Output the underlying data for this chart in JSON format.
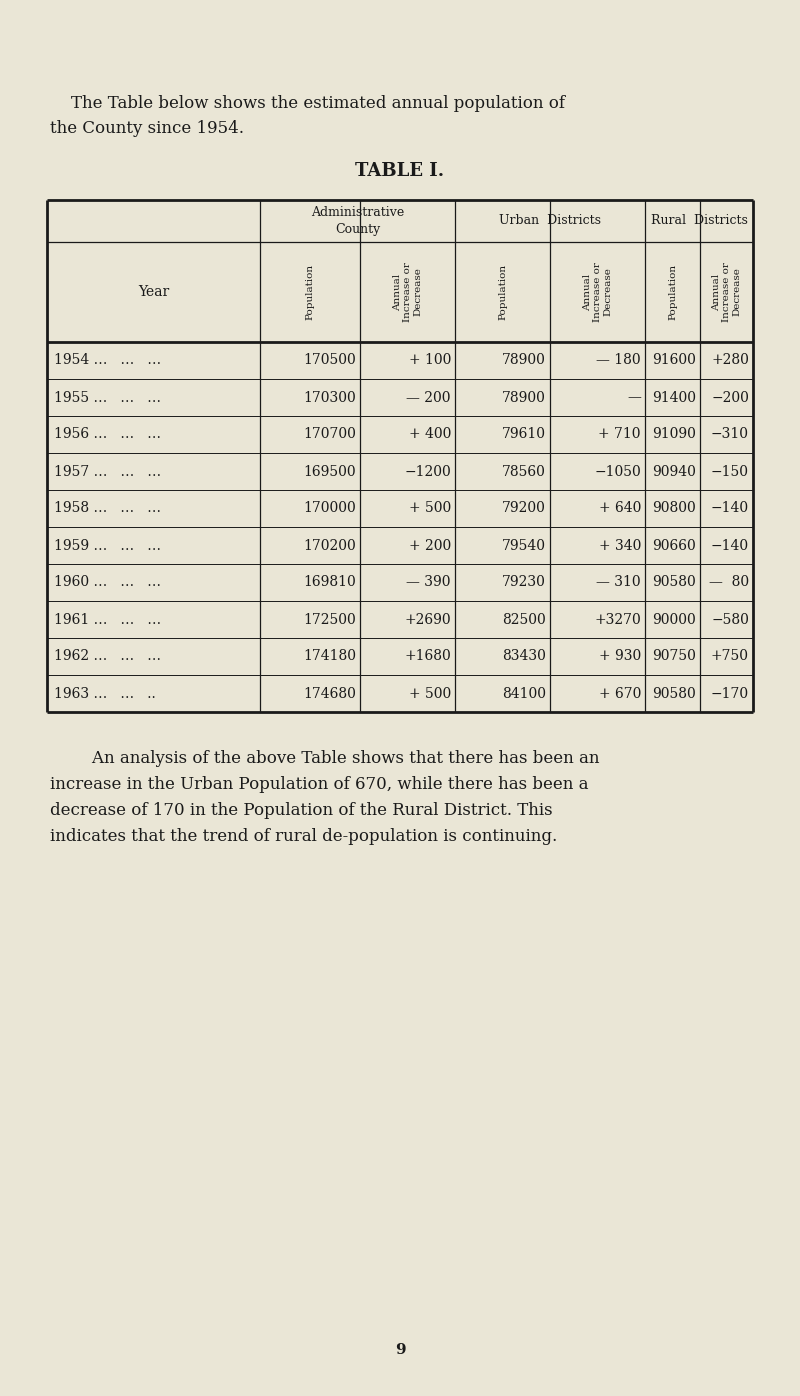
{
  "bg_color": "#eae6d6",
  "text_color": "#1a1a1a",
  "title_text": "TABLE I.",
  "intro_line1": "    The Table below shows the estimated annual population of",
  "intro_line2": "the County since 1954.",
  "footer_line1": "        An analysis of the above Table shows that there has been an",
  "footer_line2": "increase in the Urban Population of 670, while there has been a",
  "footer_line3": "decrease of 170 in the Population of the Rural District. This",
  "footer_line4": "indicates that the trend of rural de-population is continuing.",
  "page_number": "9",
  "rows": [
    [
      "1954 …   …   …",
      "170500",
      "+ 100",
      "78900",
      "— 180",
      "91600",
      "+280"
    ],
    [
      "1955 …   …   …",
      "170300",
      "— 200",
      "78900",
      "—",
      "91400",
      "−200"
    ],
    [
      "1956 …   …   …",
      "170700",
      "+ 400",
      "79610",
      "+ 710",
      "91090",
      "−310"
    ],
    [
      "1957 …   …   …",
      "169500",
      "−1200",
      "78560",
      "−1050",
      "90940",
      "−150"
    ],
    [
      "1958 …   …   …",
      "170000",
      "+ 500",
      "79200",
      "+ 640",
      "90800",
      "−140"
    ],
    [
      "1959 …   …   …",
      "170200",
      "+ 200",
      "79540",
      "+ 340",
      "90660",
      "−140"
    ],
    [
      "1960 …   …   …",
      "169810",
      "— 390",
      "79230",
      "— 310",
      "90580",
      "—  80"
    ],
    [
      "1961 …   …   …",
      "172500",
      "+2690",
      "82500",
      "+3270",
      "90000",
      "−580"
    ],
    [
      "1962 …   …   …",
      "174180",
      "+1680",
      "83430",
      "+ 930",
      "90750",
      "+750"
    ],
    [
      "1963 …   …   ..",
      "174680",
      "+ 500",
      "84100",
      "+ 670",
      "90580",
      "−170"
    ]
  ]
}
